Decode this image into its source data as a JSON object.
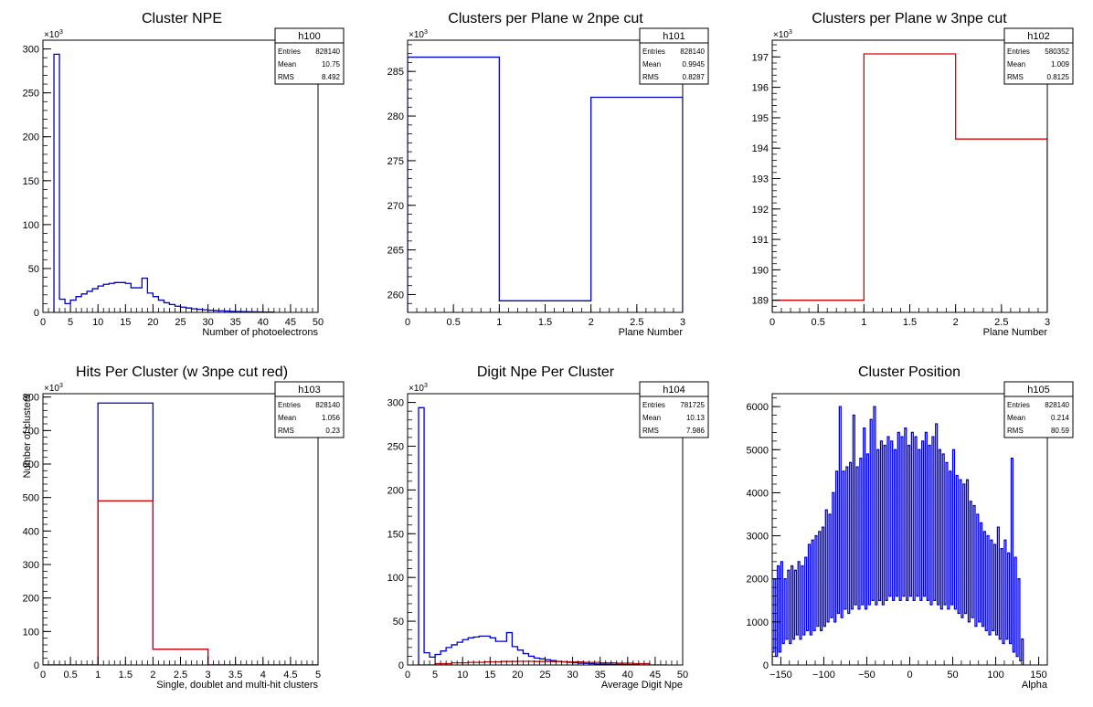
{
  "chart_data": [
    {
      "id": "h100",
      "type": "bar",
      "title": "Cluster NPE",
      "xlabel": "Number of photoelectrons",
      "ylabel": "",
      "xlim": [
        0,
        50
      ],
      "ylim": [
        0,
        310000
      ],
      "exponent_label": "×10",
      "exponent": "3",
      "yticks": [
        0,
        50000,
        100000,
        150000,
        200000,
        250000,
        300000
      ],
      "ytick_labels": [
        "0",
        "50",
        "100",
        "150",
        "200",
        "250",
        "300"
      ],
      "xticks": [
        0,
        5,
        10,
        15,
        20,
        25,
        30,
        35,
        40,
        45,
        50
      ],
      "xtick_labels": [
        "0",
        "5",
        "10",
        "15",
        "20",
        "25",
        "30",
        "35",
        "40",
        "45",
        "50"
      ],
      "stats": {
        "name": "h100",
        "rows": [
          [
            "Entries",
            "828140"
          ],
          [
            "Mean",
            "10.75"
          ],
          [
            "RMS",
            "8.492"
          ]
        ]
      },
      "series": [
        {
          "color": "#0000cc",
          "bin_edges": [
            2,
            3,
            4,
            5,
            6,
            7,
            8,
            9,
            10,
            11,
            12,
            13,
            14,
            15,
            16,
            17,
            18,
            19,
            20,
            21,
            22,
            23,
            24,
            25,
            26,
            27,
            28,
            29,
            30,
            31,
            32,
            33,
            34,
            35,
            36,
            37,
            38,
            39,
            40,
            41,
            42
          ],
          "values": [
            294000,
            15000,
            10000,
            14000,
            18000,
            21000,
            24000,
            27000,
            30000,
            32000,
            33000,
            34000,
            34000,
            33000,
            28000,
            28000,
            39000,
            22000,
            18000,
            14000,
            11000,
            9000,
            7000,
            6000,
            5000,
            4000,
            3500,
            3000,
            2500,
            2000,
            1800,
            1500,
            1200,
            1000,
            900,
            800,
            600,
            500,
            400,
            300
          ]
        }
      ]
    },
    {
      "id": "h101",
      "type": "bar",
      "title": "Clusters per Plane w 2npe cut",
      "xlabel": "Plane Number",
      "ylabel": "",
      "xlim": [
        0,
        3
      ],
      "ylim": [
        258000,
        288500
      ],
      "exponent_label": "×10",
      "exponent": "3",
      "yticks": [
        260000,
        265000,
        270000,
        275000,
        280000,
        285000
      ],
      "ytick_labels": [
        "260",
        "265",
        "270",
        "275",
        "280",
        "285"
      ],
      "xticks": [
        0,
        0.5,
        1,
        1.5,
        2,
        2.5,
        3
      ],
      "xtick_labels": [
        "0",
        "0.5",
        "1",
        "1.5",
        "2",
        "2.5",
        "3"
      ],
      "stats": {
        "name": "h101",
        "rows": [
          [
            "Entries",
            "828140"
          ],
          [
            "Mean",
            "0.9945"
          ],
          [
            "RMS",
            "0.8287"
          ]
        ]
      },
      "series": [
        {
          "color": "#0000cc",
          "bin_edges": [
            0,
            1,
            2,
            3
          ],
          "values": [
            286600,
            259300,
            282100
          ]
        }
      ]
    },
    {
      "id": "h102",
      "type": "bar",
      "title": "Clusters per Plane w 3npe cut",
      "xlabel": "Plane Number",
      "ylabel": "",
      "xlim": [
        0,
        3
      ],
      "ylim": [
        188600,
        197550
      ],
      "exponent_label": "×10",
      "exponent": "3",
      "yticks": [
        189000,
        190000,
        191000,
        192000,
        193000,
        194000,
        195000,
        196000,
        197000
      ],
      "ytick_labels": [
        "189",
        "190",
        "191",
        "192",
        "193",
        "194",
        "195",
        "196",
        "197"
      ],
      "xticks": [
        0,
        0.5,
        1,
        1.5,
        2,
        2.5,
        3
      ],
      "xtick_labels": [
        "0",
        "0.5",
        "1",
        "1.5",
        "2",
        "2.5",
        "3"
      ],
      "stats": {
        "name": "h102",
        "rows": [
          [
            "Entries",
            "580352"
          ],
          [
            "Mean",
            "1.009"
          ],
          [
            "RMS",
            "0.8125"
          ]
        ]
      },
      "series": [
        {
          "color": "#dd0000",
          "bin_edges": [
            0,
            1,
            2,
            3
          ],
          "values": [
            189000,
            197100,
            194300
          ]
        }
      ]
    },
    {
      "id": "h103",
      "type": "bar",
      "title": "Hits Per Cluster (w 3npe cut red)",
      "xlabel": "Single, doublet and multi-hit clusters",
      "ylabel": "Number of clusters",
      "xlim": [
        0,
        5
      ],
      "ylim": [
        0,
        810000
      ],
      "exponent_label": "×10",
      "exponent": "3",
      "yticks": [
        0,
        100000,
        200000,
        300000,
        400000,
        500000,
        600000,
        700000,
        800000
      ],
      "ytick_labels": [
        "0",
        "100",
        "200",
        "300",
        "400",
        "500",
        "600",
        "700",
        "800"
      ],
      "xticks": [
        0,
        0.5,
        1,
        1.5,
        2,
        2.5,
        3,
        3.5,
        4,
        4.5,
        5
      ],
      "xtick_labels": [
        "0",
        "0.5",
        "1",
        "1.5",
        "2",
        "2.5",
        "3",
        "3.5",
        "4",
        "4.5",
        "5"
      ],
      "stats": {
        "name": "h103",
        "rows": [
          [
            "Entries",
            "828140"
          ],
          [
            "Mean",
            "1.056"
          ],
          [
            "RMS",
            "0.23"
          ]
        ]
      },
      "series": [
        {
          "color": "#0000cc",
          "bin_edges": [
            0,
            1,
            2,
            3,
            4,
            5
          ],
          "values": [
            0,
            782000,
            47000,
            0,
            0
          ]
        },
        {
          "color": "#dd0000",
          "bin_edges": [
            0,
            1,
            2,
            3,
            4,
            5
          ],
          "values": [
            0,
            490000,
            47000,
            0,
            0
          ]
        }
      ]
    },
    {
      "id": "h104",
      "type": "bar",
      "title": "Digit Npe Per Cluster",
      "xlabel": "Average Digit Npe",
      "ylabel": "",
      "xlim": [
        0,
        50
      ],
      "ylim": [
        0,
        310000
      ],
      "exponent_label": "×10",
      "exponent": "3",
      "yticks": [
        0,
        50000,
        100000,
        150000,
        200000,
        250000,
        300000
      ],
      "ytick_labels": [
        "0",
        "50",
        "100",
        "150",
        "200",
        "250",
        "300"
      ],
      "xticks": [
        0,
        5,
        10,
        15,
        20,
        25,
        30,
        35,
        40,
        45,
        50
      ],
      "xtick_labels": [
        "0",
        "5",
        "10",
        "15",
        "20",
        "25",
        "30",
        "35",
        "40",
        "45",
        "50"
      ],
      "stats": {
        "name": "h104",
        "rows": [
          [
            "Entries",
            "781725"
          ],
          [
            "Mean",
            "10.13"
          ],
          [
            "RMS",
            "7.986"
          ]
        ]
      },
      "series": [
        {
          "color": "#0000cc",
          "bin_edges": [
            2,
            3,
            4,
            5,
            6,
            7,
            8,
            9,
            10,
            11,
            12,
            13,
            14,
            15,
            16,
            17,
            18,
            19,
            20,
            21,
            22,
            23,
            24,
            25,
            26,
            27,
            28,
            29,
            30,
            31,
            32,
            33,
            34,
            35,
            36,
            37,
            38,
            39,
            40,
            41,
            42
          ],
          "values": [
            294000,
            14000,
            9000,
            12000,
            16000,
            20000,
            23000,
            26000,
            29000,
            31000,
            32000,
            33000,
            33000,
            31000,
            27000,
            27000,
            37000,
            21000,
            17000,
            13000,
            10000,
            8000,
            7000,
            6000,
            5000,
            4000,
            3500,
            3000,
            2500,
            2000,
            1800,
            1500,
            1200,
            1000,
            900,
            800,
            600,
            500,
            400,
            300
          ]
        },
        {
          "color": "#dd0000",
          "bin_edges": [
            2,
            5,
            8,
            11,
            14,
            17,
            20,
            23,
            26,
            29,
            32,
            35,
            38,
            41,
            44,
            47
          ],
          "values": [
            0,
            1500,
            2500,
            3000,
            3500,
            4000,
            4200,
            4000,
            3800,
            3500,
            3000,
            2500,
            2000,
            1500,
            0
          ]
        }
      ]
    },
    {
      "id": "h105",
      "type": "bar",
      "title": "Cluster Position",
      "xlabel": "Alpha",
      "ylabel": "",
      "xlim": [
        -160,
        160
      ],
      "ylim": [
        0,
        6300
      ],
      "yticks": [
        0,
        1000,
        2000,
        3000,
        4000,
        5000,
        6000
      ],
      "ytick_labels": [
        "0",
        "1000",
        "2000",
        "3000",
        "4000",
        "5000",
        "6000"
      ],
      "xticks": [
        -150,
        -100,
        -50,
        0,
        50,
        100,
        150
      ],
      "xtick_labels": [
        "−150",
        "−100",
        "−50",
        "0",
        "50",
        "100",
        "150"
      ],
      "stats": {
        "name": "h105",
        "rows": [
          [
            "Entries",
            "828140"
          ],
          [
            "Mean",
            "0.214"
          ],
          [
            "RMS",
            "80.59"
          ]
        ]
      },
      "series": [
        {
          "color": "#0000dd",
          "x_start": -160,
          "bin_width": 2,
          "values": [
            300,
            2000,
            200,
            2300,
            300,
            2400,
            500,
            2000,
            600,
            2200,
            500,
            2300,
            600,
            2200,
            700,
            2400,
            600,
            2300,
            700,
            2500,
            800,
            2800,
            700,
            2900,
            800,
            3000,
            900,
            3100,
            800,
            3200,
            900,
            3600,
            1000,
            3500,
            1100,
            4000,
            1000,
            4500,
            1200,
            6000,
            1100,
            4500,
            1300,
            4600,
            1200,
            4700,
            1300,
            5800,
            1400,
            4600,
            1300,
            4800,
            1400,
            5500,
            1300,
            4900,
            1400,
            5700,
            1500,
            6000,
            1400,
            5000,
            1500,
            5200,
            1400,
            5100,
            1500,
            5300,
            1600,
            5200,
            1500,
            5000,
            1600,
            5400,
            1500,
            5300,
            1600,
            5500,
            1500,
            5100,
            1600,
            5400,
            1500,
            5300,
            1600,
            5000,
            1500,
            5200,
            1600,
            5400,
            1500,
            5100,
            1400,
            5300,
            1500,
            5600,
            1400,
            5000,
            1300,
            4900,
            1400,
            4700,
            1300,
            4500,
            1400,
            5000,
            1300,
            4400,
            1200,
            4300,
            1100,
            4200,
            1200,
            4300,
            1000,
            3800,
            1100,
            3700,
            900,
            3500,
            1000,
            3300,
            900,
            3100,
            800,
            3000,
            700,
            2900,
            800,
            2800,
            700,
            3200,
            600,
            2700,
            500,
            2900,
            600,
            2600,
            500,
            4800,
            300,
            2500,
            200,
            2000,
            100,
            600
          ]
        }
      ]
    }
  ]
}
